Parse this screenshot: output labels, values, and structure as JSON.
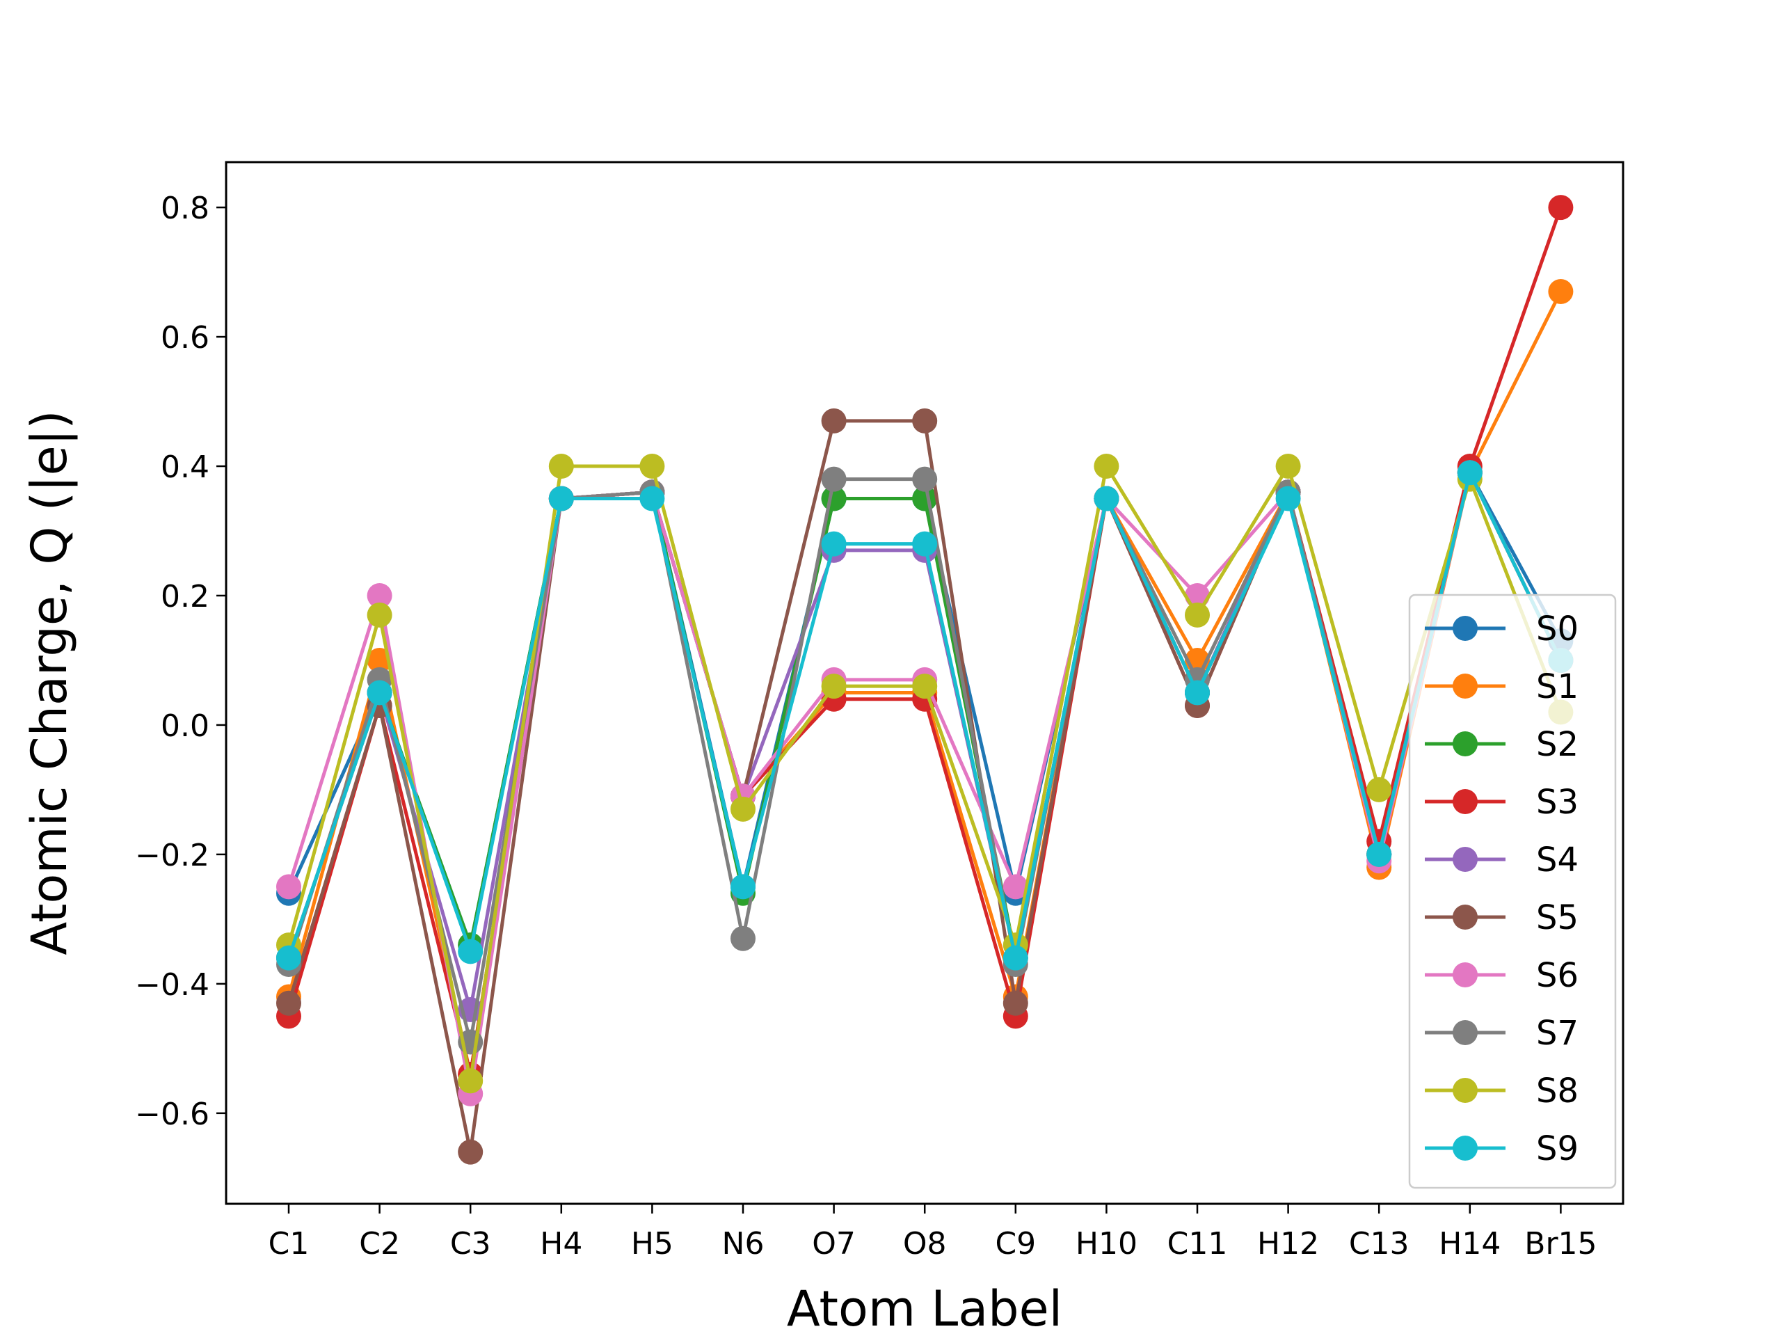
{
  "chart_data": {
    "type": "line",
    "title": "",
    "xlabel": "Atom Label",
    "ylabel": "Atomic Charge, Q (|e|)",
    "categories": [
      "C1",
      "C2",
      "C3",
      "H4",
      "H5",
      "N6",
      "O7",
      "O8",
      "C9",
      "H10",
      "C11",
      "H12",
      "C13",
      "H14",
      "Br15"
    ],
    "ylim": [
      -0.74,
      0.87
    ],
    "yticks": [
      -0.6,
      -0.4,
      -0.2,
      0.0,
      0.2,
      0.4,
      0.6,
      0.8
    ],
    "ytick_labels": [
      "−0.6",
      "−0.4",
      "−0.2",
      "0.0",
      "0.2",
      "0.4",
      "0.6",
      "0.8"
    ],
    "grid": false,
    "legend_position": "lower-right",
    "series": [
      {
        "name": "S0",
        "color": "#1f77b4",
        "values": [
          -0.26,
          0.05,
          -0.34,
          0.35,
          0.36,
          -0.25,
          0.35,
          0.35,
          -0.26,
          0.35,
          0.05,
          0.36,
          -0.2,
          0.39,
          0.13
        ]
      },
      {
        "name": "S1",
        "color": "#ff7f0e",
        "values": [
          -0.42,
          0.1,
          -0.54,
          0.35,
          0.36,
          -0.11,
          0.05,
          0.05,
          -0.42,
          0.35,
          0.1,
          0.36,
          -0.22,
          0.39,
          0.67
        ]
      },
      {
        "name": "S2",
        "color": "#2ca02c",
        "values": [
          -0.36,
          0.05,
          -0.34,
          0.35,
          0.36,
          -0.26,
          0.35,
          0.35,
          -0.36,
          0.35,
          0.05,
          0.36,
          -0.2,
          0.39,
          0.1
        ]
      },
      {
        "name": "S3",
        "color": "#d62728",
        "values": [
          -0.45,
          0.03,
          -0.54,
          0.35,
          0.36,
          -0.11,
          0.04,
          0.04,
          -0.45,
          0.35,
          0.03,
          0.36,
          -0.18,
          0.4,
          0.8
        ]
      },
      {
        "name": "S4",
        "color": "#9467bd",
        "values": [
          -0.36,
          0.05,
          -0.44,
          0.35,
          0.36,
          -0.11,
          0.27,
          0.27,
          -0.36,
          0.35,
          0.05,
          0.36,
          -0.2,
          0.39,
          0.1
        ]
      },
      {
        "name": "S5",
        "color": "#8c564b",
        "values": [
          -0.43,
          0.03,
          -0.66,
          0.35,
          0.36,
          -0.11,
          0.47,
          0.47,
          -0.43,
          0.35,
          0.03,
          0.36,
          -0.2,
          0.39,
          0.1
        ]
      },
      {
        "name": "S6",
        "color": "#e377c2",
        "values": [
          -0.25,
          0.2,
          -0.57,
          0.35,
          0.36,
          -0.11,
          0.07,
          0.07,
          -0.25,
          0.35,
          0.2,
          0.36,
          -0.21,
          0.39,
          0.1
        ]
      },
      {
        "name": "S7",
        "color": "#7f7f7f",
        "values": [
          -0.37,
          0.07,
          -0.49,
          0.35,
          0.36,
          -0.33,
          0.38,
          0.38,
          -0.37,
          0.35,
          0.07,
          0.36,
          -0.2,
          0.39,
          0.1
        ]
      },
      {
        "name": "S8",
        "color": "#bcbd22",
        "values": [
          -0.34,
          0.17,
          -0.55,
          0.4,
          0.4,
          -0.13,
          0.06,
          0.06,
          -0.34,
          0.4,
          0.17,
          0.4,
          -0.1,
          0.38,
          0.02
        ]
      },
      {
        "name": "S9",
        "color": "#17becf",
        "values": [
          -0.36,
          0.05,
          -0.35,
          0.35,
          0.35,
          -0.25,
          0.28,
          0.28,
          -0.36,
          0.35,
          0.05,
          0.35,
          -0.2,
          0.39,
          0.1
        ]
      }
    ]
  }
}
